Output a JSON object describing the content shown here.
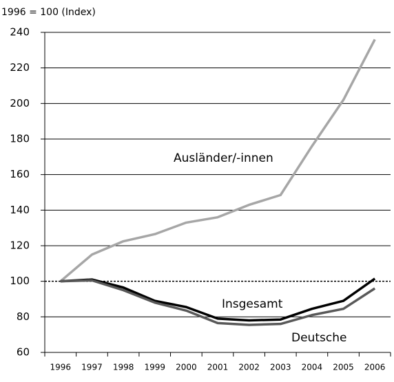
{
  "chart_data": {
    "type": "line",
    "y_axis_label": "1996 = 100 (Index)",
    "categories": [
      "1996",
      "1997",
      "1998",
      "1999",
      "2000",
      "2001",
      "2002",
      "2003",
      "2004",
      "2005",
      "2006"
    ],
    "series": [
      {
        "name": "Ausländer/-innen",
        "color": "#a6a6a6",
        "values": [
          100,
          115,
          122.5,
          126.5,
          133,
          136,
          143,
          148.5,
          176,
          202,
          236
        ]
      },
      {
        "name": "Insgesamt",
        "color": "#000000",
        "values": [
          100,
          101,
          96.5,
          89,
          85.5,
          79,
          78,
          78.5,
          84.5,
          89,
          101.5
        ]
      },
      {
        "name": "Deutsche",
        "color": "#595959",
        "values": [
          100,
          100.5,
          95,
          88,
          83.5,
          76.5,
          75.5,
          76,
          81,
          84.5,
          96
        ]
      }
    ],
    "ylim": [
      60,
      240
    ],
    "yticks": [
      60,
      80,
      100,
      120,
      140,
      160,
      180,
      200,
      220,
      240
    ],
    "reference_line": 100,
    "grid": true
  }
}
